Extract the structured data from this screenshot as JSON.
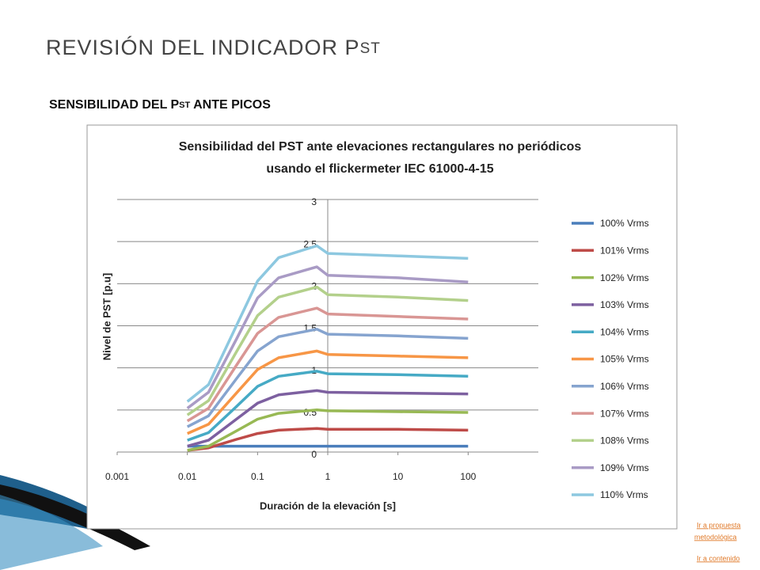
{
  "title": "REVISIÓN DEL INDICADOR P",
  "title_sub": "ST",
  "heading": "SENSIBILIDAD DEL P",
  "heading_sub": "ST",
  "heading_rest": " ANTE PICOS",
  "links": [
    "Ir a propuesta",
    " metodológica",
    "Ir a contenido"
  ],
  "chart_data": {
    "type": "line",
    "title": [
      "Sensibilidad del PST ante elevaciones rectangulares no periódicos",
      "usando el flickermeter IEC 61000-4-15"
    ],
    "x_label": "Duración de la elevación  [s]",
    "y_label": "Nivel de PST [p.u]",
    "x": [
      0.01,
      0.02,
      0.05,
      0.1,
      0.2,
      0.7,
      1,
      10,
      100
    ],
    "xlim": [
      0.001,
      1000
    ],
    "xticks": [
      0.001,
      0.01,
      0.1,
      1,
      10,
      100
    ],
    "xscale": "log",
    "ylim": [
      0,
      3
    ],
    "yticks": [
      0,
      0.5,
      1,
      1.5,
      2,
      2.5,
      3
    ],
    "yaxis_cross": 1,
    "grid": true,
    "legend": "right",
    "series": [
      {
        "name": "100% Vrms",
        "color": "#4a7ebb",
        "values": [
          0.07,
          0.07,
          0.07,
          0.07,
          0.07,
          0.07,
          0.07,
          0.07,
          0.07
        ]
      },
      {
        "name": "101% Vrms",
        "color": "#be4b48",
        "values": [
          0.02,
          0.05,
          0.15,
          0.22,
          0.26,
          0.28,
          0.27,
          0.27,
          0.26
        ]
      },
      {
        "name": "102% Vrms",
        "color": "#98b954",
        "values": [
          0.02,
          0.07,
          0.25,
          0.39,
          0.46,
          0.5,
          0.49,
          0.48,
          0.47
        ]
      },
      {
        "name": "103% Vrms",
        "color": "#7d60a0",
        "values": [
          0.07,
          0.14,
          0.39,
          0.58,
          0.68,
          0.73,
          0.71,
          0.7,
          0.69
        ]
      },
      {
        "name": "104% Vrms",
        "color": "#46aac5",
        "values": [
          0.14,
          0.23,
          0.54,
          0.78,
          0.9,
          0.96,
          0.93,
          0.92,
          0.9
        ]
      },
      {
        "name": "105% Vrms",
        "color": "#f79646",
        "values": [
          0.22,
          0.33,
          0.7,
          0.98,
          1.12,
          1.2,
          1.16,
          1.14,
          1.12
        ]
      },
      {
        "name": "106% Vrms",
        "color": "#86a4cf",
        "values": [
          0.3,
          0.43,
          0.87,
          1.2,
          1.37,
          1.46,
          1.4,
          1.38,
          1.35
        ]
      },
      {
        "name": "107% Vrms",
        "color": "#d99694",
        "values": [
          0.37,
          0.52,
          1.03,
          1.41,
          1.6,
          1.71,
          1.64,
          1.61,
          1.58
        ]
      },
      {
        "name": "108% Vrms",
        "color": "#b3d08b",
        "values": [
          0.44,
          0.61,
          1.19,
          1.62,
          1.84,
          1.96,
          1.87,
          1.84,
          1.8
        ]
      },
      {
        "name": "109% Vrms",
        "color": "#a99bc5",
        "values": [
          0.52,
          0.71,
          1.34,
          1.83,
          2.07,
          2.2,
          2.1,
          2.07,
          2.02
        ]
      },
      {
        "name": "110% Vrms",
        "color": "#8dc8e0",
        "values": [
          0.6,
          0.8,
          1.5,
          2.03,
          2.31,
          2.45,
          2.36,
          2.33,
          2.3
        ]
      }
    ]
  }
}
